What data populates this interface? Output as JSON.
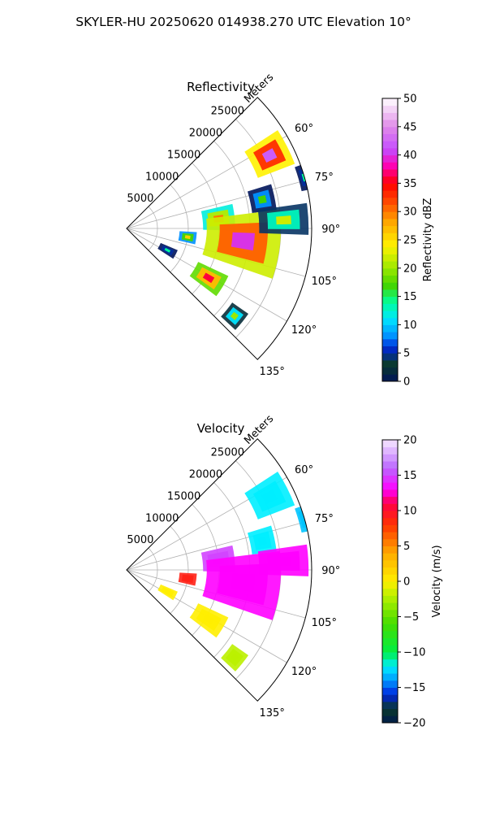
{
  "suptitle": "SKYLER-HU  20250620  014938.270 UTC Elevation 10°",
  "chart_data": [
    {
      "type": "heatmap",
      "subtype": "radar-ppi-sector",
      "title": "Reflectivity",
      "range_axis_label": "Meters",
      "range_ticks": [
        "5000",
        "10000",
        "15000",
        "20000",
        "25000"
      ],
      "range_tick_values": [
        5000,
        10000,
        15000,
        20000,
        25000
      ],
      "range_max": 30000,
      "azimuth_range": [
        45,
        135
      ],
      "azimuth_ticks": [
        "60°",
        "75°",
        "90°",
        "105°",
        "120°",
        "135°"
      ],
      "azimuth_tick_values": [
        60,
        75,
        90,
        105,
        120,
        135
      ],
      "grid": true,
      "colorbar": {
        "label": "Reflectivity dBZ",
        "min": 0,
        "max": 50,
        "ticks": [
          "0",
          "5",
          "10",
          "15",
          "20",
          "25",
          "30",
          "35",
          "40",
          "45",
          "50"
        ],
        "tick_values": [
          0,
          5,
          10,
          15,
          20,
          25,
          30,
          35,
          40,
          45,
          50
        ],
        "colors": [
          {
            "v": 0,
            "c": "#00145a"
          },
          {
            "v": 3,
            "c": "#0a3a2a"
          },
          {
            "v": 6,
            "c": "#0028d8"
          },
          {
            "v": 8,
            "c": "#0090ff"
          },
          {
            "v": 11,
            "c": "#00e5ff"
          },
          {
            "v": 14,
            "c": "#00ff9a"
          },
          {
            "v": 17,
            "c": "#44d400"
          },
          {
            "v": 20,
            "c": "#9be800"
          },
          {
            "v": 24,
            "c": "#fff200"
          },
          {
            "v": 28,
            "c": "#ffaa00"
          },
          {
            "v": 32,
            "c": "#ff4400"
          },
          {
            "v": 35,
            "c": "#ff0000"
          },
          {
            "v": 38,
            "c": "#ff00b0"
          },
          {
            "v": 41,
            "c": "#c44dff"
          },
          {
            "v": 45,
            "c": "#e08ae8"
          },
          {
            "v": 50,
            "c": "#ffffff"
          }
        ]
      },
      "echoes": [
        {
          "az": 63,
          "r": 26000,
          "dr": 3200,
          "daz": 6,
          "value": 42
        },
        {
          "az": 84,
          "r": 15000,
          "dr": 2600,
          "daz": 7,
          "value": 30
        },
        {
          "az": 78,
          "r": 22500,
          "dr": 2000,
          "daz": 5,
          "value": 17
        },
        {
          "az": 74,
          "r": 30000,
          "dr": 1000,
          "daz": 4,
          "value": 14
        },
        {
          "az": 96,
          "r": 19000,
          "dr": 6000,
          "daz": 13,
          "value": 40
        },
        {
          "az": 87,
          "r": 25500,
          "dr": 4000,
          "daz": 5,
          "value": 22
        },
        {
          "az": 98,
          "r": 10000,
          "dr": 1400,
          "daz": 5,
          "value": 26
        },
        {
          "az": 121,
          "r": 15500,
          "dr": 2700,
          "daz": 6,
          "value": 36
        },
        {
          "az": 129,
          "r": 22500,
          "dr": 1600,
          "daz": 4,
          "value": 20
        },
        {
          "az": 118,
          "r": 7500,
          "dr": 1500,
          "daz": 5,
          "value": 14
        }
      ]
    },
    {
      "type": "heatmap",
      "subtype": "radar-ppi-sector",
      "title": "Velocity",
      "range_axis_label": "Meters",
      "range_ticks": [
        "5000",
        "10000",
        "15000",
        "20000",
        "25000"
      ],
      "range_tick_values": [
        5000,
        10000,
        15000,
        20000,
        25000
      ],
      "range_max": 30000,
      "azimuth_range": [
        45,
        135
      ],
      "azimuth_ticks": [
        "60°",
        "75°",
        "90°",
        "105°",
        "120°",
        "135°"
      ],
      "azimuth_tick_values": [
        60,
        75,
        90,
        105,
        120,
        135
      ],
      "grid": true,
      "colorbar": {
        "label": "Velocity (m/s)",
        "min": -20,
        "max": 20,
        "ticks": [
          "−20",
          "−15",
          "−10",
          "−5",
          "0",
          "5",
          "10",
          "15",
          "20"
        ],
        "tick_values": [
          -20,
          -15,
          -10,
          -5,
          0,
          5,
          10,
          15,
          20
        ],
        "colors": [
          {
            "v": -20,
            "c": "#001a4d"
          },
          {
            "v": -18,
            "c": "#0a3a2a"
          },
          {
            "v": -16,
            "c": "#0022dd"
          },
          {
            "v": -14,
            "c": "#0099ff"
          },
          {
            "v": -12,
            "c": "#00eeff"
          },
          {
            "v": -10,
            "c": "#00ee44"
          },
          {
            "v": -6,
            "c": "#44dd00"
          },
          {
            "v": -2,
            "c": "#bbf000"
          },
          {
            "v": 0,
            "c": "#ffee00"
          },
          {
            "v": 4,
            "c": "#ffaa00"
          },
          {
            "v": 8,
            "c": "#ff3300"
          },
          {
            "v": 11,
            "c": "#ff0044"
          },
          {
            "v": 13,
            "c": "#ff00ff"
          },
          {
            "v": 16,
            "c": "#bb66ff"
          },
          {
            "v": 20,
            "c": "#f6e8ff"
          }
        ]
      },
      "echoes": [
        {
          "az": 63,
          "r": 26000,
          "dr": 3200,
          "daz": 6,
          "value": -12
        },
        {
          "az": 84,
          "r": 15000,
          "dr": 2600,
          "daz": 7,
          "value": 15
        },
        {
          "az": 78,
          "r": 22500,
          "dr": 2000,
          "daz": 5,
          "value": -12
        },
        {
          "az": 74,
          "r": 30000,
          "dr": 1000,
          "daz": 4,
          "value": -13
        },
        {
          "az": 96,
          "r": 19000,
          "dr": 6000,
          "daz": 13,
          "value": 13
        },
        {
          "az": 87,
          "r": 25500,
          "dr": 4000,
          "daz": 5,
          "value": 13
        },
        {
          "az": 98,
          "r": 10000,
          "dr": 1400,
          "daz": 5,
          "value": 9
        },
        {
          "az": 121,
          "r": 15500,
          "dr": 2700,
          "daz": 6,
          "value": 0
        },
        {
          "az": 129,
          "r": 22500,
          "dr": 1600,
          "daz": 4,
          "value": -2
        },
        {
          "az": 118,
          "r": 7500,
          "dr": 1500,
          "daz": 5,
          "value": 0
        }
      ]
    }
  ]
}
